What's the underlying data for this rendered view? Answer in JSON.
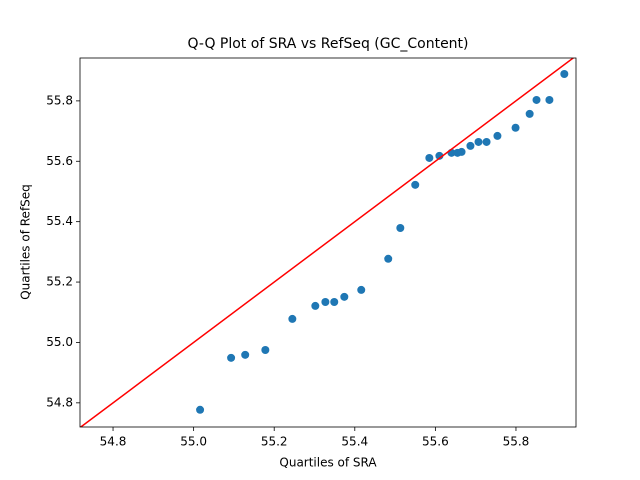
{
  "chart_data": {
    "type": "scatter",
    "title": "Q-Q Plot of SRA vs RefSeq (GC_Content)",
    "x_label": "Quartiles of SRA",
    "y_label": "Quartiles of RefSeq",
    "x": [
      55.016,
      55.093,
      55.128,
      55.178,
      55.245,
      55.302,
      55.327,
      55.349,
      55.374,
      55.416,
      55.483,
      55.513,
      55.55,
      55.585,
      55.61,
      55.64,
      55.655,
      55.665,
      55.687,
      55.707,
      55.727,
      55.754,
      55.799,
      55.834,
      55.851,
      55.883,
      55.92
    ],
    "values": [
      54.777,
      54.949,
      54.959,
      54.975,
      55.078,
      55.121,
      55.134,
      55.134,
      55.151,
      55.174,
      55.277,
      55.379,
      55.522,
      55.611,
      55.618,
      55.628,
      55.628,
      55.631,
      55.651,
      55.664,
      55.664,
      55.684,
      55.711,
      55.757,
      55.803,
      55.803,
      55.889
    ],
    "color": "#1f77b4",
    "reference_line_color": "#ff0000",
    "xlim": [
      54.718,
      55.949
    ],
    "ylim": [
      54.72,
      55.942
    ],
    "xticks": [
      54.8,
      {
        "value": 55,
        "label": "55.0"
      },
      55.2,
      55.4,
      55.6,
      55.8
    ],
    "yticks": [
      54.8,
      {
        "value": 55,
        "label": "55.0"
      },
      55.2,
      55.4,
      55.6,
      55.8
    ]
  }
}
